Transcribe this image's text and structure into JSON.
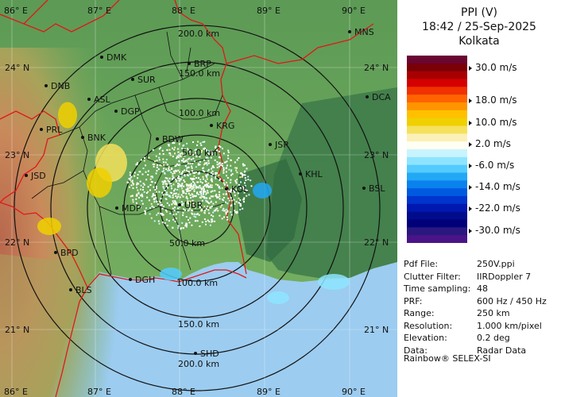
{
  "map": {
    "lon_labels_top": [
      "86° E",
      "87° E",
      "88° E",
      "89° E",
      "90° E"
    ],
    "lon_labels_bottom": [
      "86° E",
      "87° E",
      "88° E",
      "89° E",
      "90° E"
    ],
    "lat_labels_left": [
      "24° N",
      "23° N",
      "22° N",
      "21° N"
    ],
    "lat_labels_right": [
      "24° N",
      "23° N",
      "22° N",
      "21° N"
    ],
    "range_labels_top": [
      "200.0 km",
      "150.0 km",
      "100.0 km",
      "50.0 km"
    ],
    "range_labels_bottom": [
      "50.0 km",
      "100.0 km",
      "150.0 km",
      "200.0 km"
    ],
    "stations": [
      {
        "code": "MNS"
      },
      {
        "code": "DMK"
      },
      {
        "code": "BRP"
      },
      {
        "code": "DNB"
      },
      {
        "code": "SUR"
      },
      {
        "code": "DCA"
      },
      {
        "code": "ASL"
      },
      {
        "code": "DGP"
      },
      {
        "code": "PRL"
      },
      {
        "code": "BNK"
      },
      {
        "code": "BDW"
      },
      {
        "code": "KRG"
      },
      {
        "code": "JSR"
      },
      {
        "code": "KHL"
      },
      {
        "code": "JSD"
      },
      {
        "code": "KOL"
      },
      {
        "code": "MDP"
      },
      {
        "code": "BSL"
      },
      {
        "code": "UBR"
      },
      {
        "code": "BPD"
      },
      {
        "code": "DGH"
      },
      {
        "code": "BLS"
      },
      {
        "code": "SHD"
      }
    ]
  },
  "panel": {
    "title": "PPI (V)",
    "datetime": "18:42 / 25-Sep-2025",
    "station": "Kolkata",
    "legend": {
      "colors": [
        "#6a0632",
        "#7a0008",
        "#a80000",
        "#d40000",
        "#f03200",
        "#ff6400",
        "#ff9400",
        "#ffc000",
        "#f0d000",
        "#f5e15c",
        "#fbf0b8",
        "#fffef2",
        "#c8f4ff",
        "#8ee4ff",
        "#54cbff",
        "#22a8f5",
        "#0a82ee",
        "#005ae0",
        "#0034cc",
        "#0018b0",
        "#000c8c",
        "#000078",
        "#2a1880",
        "#4a1488"
      ],
      "labels": [
        "30.0 m/s",
        "18.0 m/s",
        "10.0 m/s",
        "2.0 m/s",
        "-6.0 m/s",
        "-14.0 m/s",
        "-22.0 m/s",
        "-30.0 m/s"
      ]
    },
    "info": [
      {
        "k": "Pdf File:",
        "v": "250V.ppi"
      },
      {
        "k": "Clutter Filter:",
        "v": "IIRDoppler 7"
      },
      {
        "k": "Time sampling:",
        "v": "48"
      },
      {
        "k": "PRF:",
        "v": "600 Hz / 450 Hz"
      },
      {
        "k": "Range:",
        "v": "250 km"
      },
      {
        "k": "Resolution:",
        "v": "1.000 km/pixel"
      },
      {
        "k": "Elevation:",
        "v": "0.2 deg"
      },
      {
        "k": "Data:",
        "v": "Radar Data"
      }
    ],
    "credit": "Rainbow® SELEX-SI"
  },
  "colors": {
    "sea": "#9cccf0",
    "land_green": "#6faa5c",
    "land_dark": "#3f7d4b",
    "hills": "#c8785a",
    "rings": "#111111",
    "border": "#e01818"
  }
}
